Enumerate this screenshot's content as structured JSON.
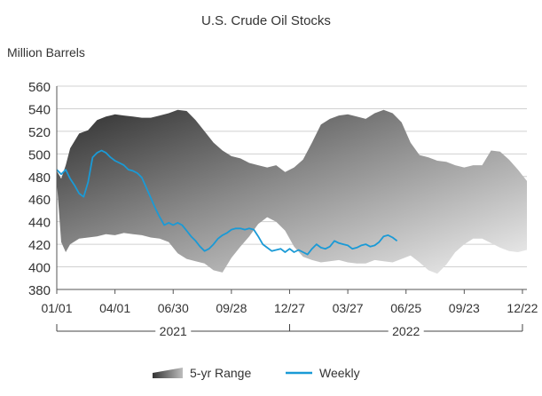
{
  "chart_data": {
    "type": "area",
    "title": "U.S. Crude Oil Stocks",
    "ylabel": "Million Barrels",
    "xlabel": "",
    "ylim": [
      380,
      560
    ],
    "yticks": [
      560,
      540,
      520,
      500,
      480,
      460,
      440,
      420,
      400,
      380
    ],
    "xticks": [
      "01/01",
      "04/01",
      "06/30",
      "09/28",
      "12/27",
      "03/27",
      "06/25",
      "09/23",
      "12/22"
    ],
    "year_labels": [
      "2021",
      "2022"
    ],
    "grid": true,
    "legend_position": "bottom",
    "colors": {
      "weekly": "#1a9ad6",
      "range_dark": "#3b3b3b",
      "range_light": "#efefef"
    },
    "range_series": {
      "name": "5-yr Range",
      "week_index": [
        0,
        1,
        2,
        3,
        5,
        7,
        9,
        11,
        13,
        15,
        17,
        19,
        21,
        23,
        25,
        27,
        29,
        31,
        33,
        35,
        37,
        39,
        41,
        43,
        45,
        47,
        49,
        51,
        53,
        55,
        57,
        59,
        61,
        63,
        65,
        67,
        69,
        71,
        73,
        75,
        77,
        79,
        81,
        83,
        85,
        87,
        89,
        91,
        93,
        95,
        97,
        99,
        101,
        103,
        105
      ],
      "upper": [
        485,
        478,
        490,
        505,
        518,
        521,
        530,
        533,
        535,
        534,
        533,
        532,
        532,
        534,
        536,
        539,
        538,
        530,
        520,
        510,
        503,
        498,
        496,
        492,
        490,
        488,
        490,
        484,
        488,
        495,
        510,
        526,
        531,
        534,
        535,
        533,
        531,
        536,
        539,
        536,
        528,
        510,
        499,
        497,
        494,
        493,
        490,
        488,
        490,
        490,
        503,
        502,
        495,
        486,
        476
      ],
      "lower": [
        476,
        422,
        413,
        420,
        425,
        426,
        427,
        429,
        428,
        430,
        429,
        428,
        426,
        425,
        422,
        412,
        407,
        405,
        403,
        397,
        395,
        408,
        418,
        427,
        438,
        444,
        440,
        432,
        418,
        409,
        406,
        404,
        405,
        406,
        404,
        403,
        403,
        406,
        405,
        404,
        407,
        410,
        404,
        397,
        394,
        402,
        413,
        420,
        425,
        425,
        421,
        417,
        414,
        413,
        415
      ]
    },
    "series": [
      {
        "name": "Weekly",
        "week_index": [
          0,
          1,
          2,
          3,
          4,
          5,
          6,
          7,
          8,
          9,
          10,
          11,
          12,
          13,
          14,
          15,
          16,
          17,
          18,
          19,
          20,
          21,
          22,
          23,
          24,
          25,
          26,
          27,
          28,
          29,
          30,
          31,
          32,
          33,
          34,
          35,
          36,
          37,
          38,
          39,
          40,
          41,
          42,
          43,
          44,
          45,
          46,
          47,
          48,
          49,
          50,
          51,
          52,
          53,
          54,
          55,
          56,
          57,
          58,
          59,
          60,
          61,
          62,
          63,
          64,
          65,
          66,
          67,
          68,
          69,
          70,
          71,
          72,
          73,
          74,
          75,
          76
        ],
        "values": [
          486,
          482,
          486,
          478,
          472,
          465,
          462,
          475,
          497,
          501,
          503,
          501,
          497,
          494,
          492,
          490,
          486,
          485,
          483,
          479,
          470,
          461,
          452,
          444,
          437,
          439,
          437,
          439,
          437,
          432,
          427,
          423,
          418,
          414,
          416,
          420,
          425,
          428,
          430,
          433,
          434,
          434,
          433,
          434,
          433,
          427,
          420,
          417,
          414,
          415,
          416,
          413,
          416,
          413,
          415,
          413,
          411,
          416,
          420,
          417,
          416,
          418,
          423,
          421,
          420,
          419,
          416,
          417,
          419,
          420,
          418,
          419,
          422,
          427,
          428,
          426,
          423
        ]
      }
    ]
  },
  "legend": {
    "range_label": "5-yr Range",
    "weekly_label": "Weekly"
  }
}
